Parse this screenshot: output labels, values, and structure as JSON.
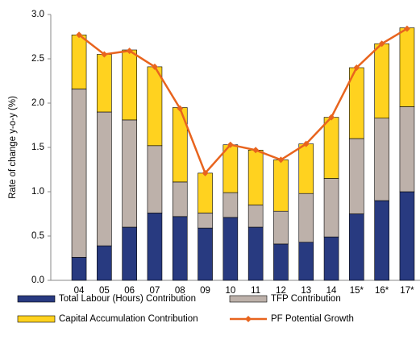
{
  "chart_data": {
    "type": "bar",
    "stacked": true,
    "y_label": "Rate of change y-o-y (%)",
    "categories": [
      "04",
      "05",
      "06",
      "07",
      "08",
      "09",
      "10",
      "11",
      "12",
      "13",
      "14",
      "15*",
      "16*",
      "17*"
    ],
    "series": [
      {
        "name": "Total Labour (Hours) Contribution",
        "type": "bar",
        "color": "#283a80",
        "values": [
          0.26,
          0.39,
          0.6,
          0.76,
          0.72,
          0.59,
          0.71,
          0.6,
          0.41,
          0.43,
          0.49,
          0.75,
          0.9,
          1.0
        ]
      },
      {
        "name": "TFP Contribution",
        "type": "bar",
        "color": "#bdb1aa",
        "values": [
          1.9,
          1.51,
          1.21,
          0.76,
          0.39,
          0.17,
          0.28,
          0.25,
          0.37,
          0.55,
          0.66,
          0.85,
          0.93,
          0.96
        ]
      },
      {
        "name": "Capital Accumulation Contribution",
        "type": "bar",
        "color": "#ffd21f",
        "values": [
          0.61,
          0.65,
          0.79,
          0.89,
          0.84,
          0.45,
          0.54,
          0.62,
          0.58,
          0.56,
          0.69,
          0.8,
          0.84,
          0.89
        ]
      },
      {
        "name": "PF Potential Growth",
        "type": "line",
        "color": "#e8641e",
        "values": [
          2.77,
          2.55,
          2.59,
          2.41,
          1.94,
          1.21,
          1.53,
          1.47,
          1.36,
          1.54,
          1.84,
          2.4,
          2.67,
          2.84
        ]
      }
    ],
    "ylim": [
      0,
      3.0
    ],
    "yticks": [
      {
        "value": 0,
        "label": "0.0"
      },
      {
        "value": 0.5,
        "label": "0.5"
      },
      {
        "value": 1.0,
        "label": "1.0"
      },
      {
        "value": 1.5,
        "label": "1.5"
      },
      {
        "value": 2.0,
        "label": "2.0"
      },
      {
        "value": 2.5,
        "label": "2.5"
      },
      {
        "value": 3.0,
        "label": "3.0"
      }
    ],
    "grid": false,
    "legend": "bottom"
  }
}
